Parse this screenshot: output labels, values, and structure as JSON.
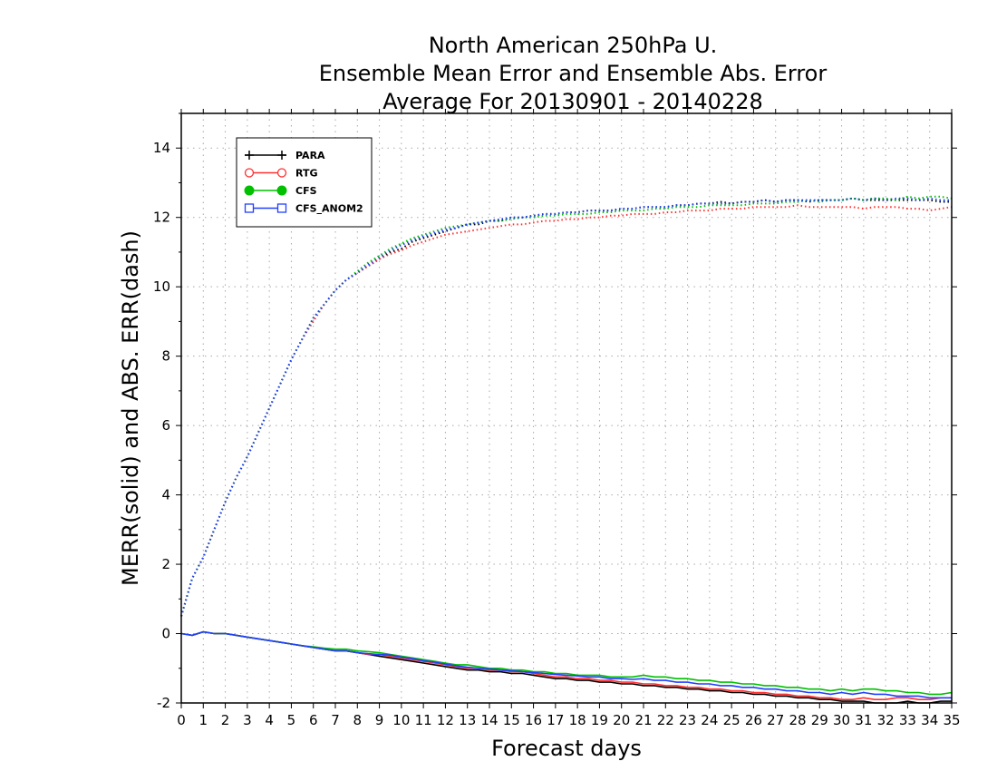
{
  "chart_data": {
    "type": "line",
    "title": [
      "North American 250hPa U.",
      "Ensemble Mean Error and Ensemble Abs. Error",
      "Average For 20130901 - 20140228"
    ],
    "xlabel": "Forecast days",
    "ylabel": "MERR(solid) and ABS. ERR(dash)",
    "xlim": [
      0,
      35
    ],
    "ylim": [
      -2,
      15
    ],
    "xticks": [
      0,
      1,
      2,
      3,
      4,
      5,
      6,
      7,
      8,
      9,
      10,
      11,
      12,
      13,
      14,
      15,
      16,
      17,
      18,
      19,
      20,
      21,
      22,
      23,
      24,
      25,
      26,
      27,
      28,
      29,
      30,
      31,
      32,
      33,
      34,
      35
    ],
    "yticks": [
      -2,
      0,
      2,
      4,
      6,
      8,
      10,
      12,
      14
    ],
    "grid": true,
    "legend_position": "top-left",
    "x": [
      0,
      0.5,
      1,
      1.5,
      2,
      2.5,
      3,
      3.5,
      4,
      4.5,
      5,
      5.5,
      6,
      6.5,
      7,
      7.5,
      8,
      8.5,
      9,
      9.5,
      10,
      10.5,
      11,
      11.5,
      12,
      12.5,
      13,
      13.5,
      14,
      14.5,
      15,
      15.5,
      16,
      16.5,
      17,
      17.5,
      18,
      18.5,
      19,
      19.5,
      20,
      20.5,
      21,
      21.5,
      22,
      22.5,
      23,
      23.5,
      24,
      24.5,
      25,
      25.5,
      26,
      26.5,
      27,
      27.5,
      28,
      28.5,
      29,
      29.5,
      30,
      30.5,
      31,
      31.5,
      32,
      32.5,
      33,
      33.5,
      34,
      34.5,
      35
    ],
    "series": [
      {
        "name": "PARA",
        "color": "#000000",
        "marker": "plus",
        "merr": [
          0,
          -0.05,
          0.05,
          0,
          0,
          -0.05,
          -0.1,
          -0.15,
          -0.2,
          -0.25,
          -0.3,
          -0.35,
          -0.4,
          -0.45,
          -0.5,
          -0.5,
          -0.55,
          -0.6,
          -0.65,
          -0.7,
          -0.75,
          -0.8,
          -0.85,
          -0.9,
          -0.95,
          -1,
          -1.05,
          -1.05,
          -1.1,
          -1.1,
          -1.15,
          -1.15,
          -1.2,
          -1.25,
          -1.3,
          -1.3,
          -1.35,
          -1.35,
          -1.4,
          -1.4,
          -1.45,
          -1.45,
          -1.5,
          -1.5,
          -1.55,
          -1.55,
          -1.6,
          -1.6,
          -1.65,
          -1.65,
          -1.7,
          -1.7,
          -1.75,
          -1.75,
          -1.8,
          -1.8,
          -1.85,
          -1.85,
          -1.9,
          -1.9,
          -1.95,
          -1.95,
          -1.95,
          -2,
          -2,
          -2,
          -1.95,
          -2,
          -2,
          -1.95,
          -1.95
        ],
        "abs_err": [
          0.5,
          1.6,
          2.2,
          3,
          3.8,
          4.5,
          5.1,
          5.8,
          6.5,
          7.2,
          7.9,
          8.5,
          9.1,
          9.5,
          9.9,
          10.2,
          10.4,
          10.6,
          10.8,
          11,
          11.1,
          11.3,
          11.4,
          11.5,
          11.6,
          11.7,
          11.8,
          11.8,
          11.9,
          11.9,
          12,
          12,
          12.05,
          12.1,
          12.1,
          12.15,
          12.15,
          12.2,
          12.2,
          12.2,
          12.25,
          12.25,
          12.3,
          12.3,
          12.3,
          12.35,
          12.35,
          12.4,
          12.4,
          12.45,
          12.4,
          12.45,
          12.45,
          12.5,
          12.45,
          12.5,
          12.5,
          12.45,
          12.5,
          12.5,
          12.5,
          12.55,
          12.5,
          12.5,
          12.5,
          12.5,
          12.5,
          12.5,
          12.5,
          12.45,
          12.45
        ]
      },
      {
        "name": "RTG",
        "color": "#ff3030",
        "marker": "open-circle",
        "merr": [
          0,
          -0.05,
          0.05,
          0,
          0,
          -0.05,
          -0.1,
          -0.15,
          -0.2,
          -0.25,
          -0.3,
          -0.35,
          -0.4,
          -0.45,
          -0.5,
          -0.5,
          -0.55,
          -0.6,
          -0.6,
          -0.65,
          -0.7,
          -0.75,
          -0.8,
          -0.85,
          -0.9,
          -0.95,
          -1,
          -1,
          -1.05,
          -1.05,
          -1.1,
          -1.1,
          -1.15,
          -1.2,
          -1.25,
          -1.25,
          -1.3,
          -1.3,
          -1.35,
          -1.35,
          -1.4,
          -1.4,
          -1.45,
          -1.45,
          -1.5,
          -1.5,
          -1.55,
          -1.55,
          -1.6,
          -1.6,
          -1.65,
          -1.65,
          -1.7,
          -1.7,
          -1.75,
          -1.75,
          -1.8,
          -1.8,
          -1.85,
          -1.85,
          -1.9,
          -1.9,
          -1.85,
          -1.9,
          -1.9,
          -1.85,
          -1.85,
          -1.9,
          -1.9,
          -1.85,
          -1.85
        ],
        "abs_err": [
          0.5,
          1.6,
          2.2,
          3,
          3.8,
          4.5,
          5.1,
          5.8,
          6.5,
          7.2,
          7.9,
          8.5,
          9,
          9.5,
          9.9,
          10.2,
          10.4,
          10.6,
          10.8,
          10.95,
          11.05,
          11.2,
          11.3,
          11.4,
          11.5,
          11.55,
          11.6,
          11.65,
          11.7,
          11.75,
          11.8,
          11.8,
          11.85,
          11.9,
          11.9,
          11.95,
          11.95,
          12,
          12,
          12.05,
          12.05,
          12.1,
          12.1,
          12.1,
          12.15,
          12.15,
          12.2,
          12.2,
          12.2,
          12.25,
          12.25,
          12.25,
          12.3,
          12.3,
          12.3,
          12.3,
          12.35,
          12.3,
          12.3,
          12.3,
          12.3,
          12.3,
          12.25,
          12.3,
          12.3,
          12.3,
          12.25,
          12.25,
          12.2,
          12.25,
          12.3
        ]
      },
      {
        "name": "CFS",
        "color": "#00c000",
        "marker": "filled-circle",
        "merr": [
          0,
          -0.05,
          0.05,
          0,
          0,
          -0.05,
          -0.1,
          -0.15,
          -0.2,
          -0.25,
          -0.3,
          -0.35,
          -0.38,
          -0.42,
          -0.45,
          -0.45,
          -0.5,
          -0.52,
          -0.55,
          -0.6,
          -0.65,
          -0.7,
          -0.75,
          -0.8,
          -0.85,
          -0.9,
          -0.9,
          -0.95,
          -1,
          -1,
          -1.05,
          -1.05,
          -1.1,
          -1.1,
          -1.15,
          -1.15,
          -1.2,
          -1.2,
          -1.2,
          -1.25,
          -1.25,
          -1.25,
          -1.2,
          -1.25,
          -1.25,
          -1.3,
          -1.3,
          -1.35,
          -1.35,
          -1.4,
          -1.4,
          -1.45,
          -1.45,
          -1.5,
          -1.5,
          -1.55,
          -1.55,
          -1.6,
          -1.6,
          -1.65,
          -1.6,
          -1.65,
          -1.6,
          -1.6,
          -1.65,
          -1.65,
          -1.7,
          -1.7,
          -1.75,
          -1.75,
          -1.7
        ],
        "abs_err": [
          0.5,
          1.6,
          2.2,
          3,
          3.8,
          4.5,
          5.1,
          5.8,
          6.5,
          7.2,
          7.9,
          8.5,
          9.1,
          9.5,
          9.9,
          10.2,
          10.45,
          10.7,
          10.9,
          11.1,
          11.25,
          11.4,
          11.5,
          11.6,
          11.7,
          11.75,
          11.8,
          11.85,
          11.9,
          11.9,
          11.95,
          12,
          12,
          12.05,
          12.05,
          12.1,
          12.1,
          12.1,
          12.15,
          12.15,
          12.2,
          12.2,
          12.2,
          12.25,
          12.25,
          12.3,
          12.3,
          12.3,
          12.35,
          12.35,
          12.35,
          12.35,
          12.4,
          12.4,
          12.4,
          12.45,
          12.45,
          12.5,
          12.45,
          12.5,
          12.5,
          12.55,
          12.5,
          12.55,
          12.55,
          12.5,
          12.6,
          12.55,
          12.6,
          12.6,
          12.55
        ]
      },
      {
        "name": "CFS_ANOM2",
        "color": "#2040ff",
        "marker": "open-square",
        "merr": [
          0,
          -0.05,
          0.05,
          0,
          0,
          -0.05,
          -0.1,
          -0.15,
          -0.2,
          -0.25,
          -0.3,
          -0.35,
          -0.4,
          -0.45,
          -0.5,
          -0.5,
          -0.55,
          -0.58,
          -0.6,
          -0.62,
          -0.68,
          -0.72,
          -0.78,
          -0.82,
          -0.88,
          -0.93,
          -0.97,
          -1,
          -1.02,
          -1.05,
          -1.07,
          -1.1,
          -1.12,
          -1.15,
          -1.18,
          -1.2,
          -1.22,
          -1.25,
          -1.25,
          -1.3,
          -1.3,
          -1.32,
          -1.3,
          -1.35,
          -1.35,
          -1.4,
          -1.4,
          -1.45,
          -1.45,
          -1.5,
          -1.5,
          -1.55,
          -1.55,
          -1.6,
          -1.6,
          -1.65,
          -1.65,
          -1.7,
          -1.7,
          -1.75,
          -1.7,
          -1.75,
          -1.7,
          -1.75,
          -1.75,
          -1.8,
          -1.8,
          -1.8,
          -1.85,
          -1.85,
          -1.85
        ],
        "abs_err": [
          0.5,
          1.6,
          2.2,
          3,
          3.8,
          4.5,
          5.1,
          5.8,
          6.5,
          7.2,
          7.9,
          8.5,
          9.1,
          9.5,
          9.9,
          10.2,
          10.4,
          10.65,
          10.85,
          11.05,
          11.2,
          11.35,
          11.45,
          11.55,
          11.65,
          11.7,
          11.8,
          11.85,
          11.9,
          11.95,
          12,
          12,
          12.05,
          12.1,
          12.1,
          12.15,
          12.15,
          12.2,
          12.2,
          12.2,
          12.25,
          12.25,
          12.3,
          12.3,
          12.3,
          12.35,
          12.35,
          12.4,
          12.4,
          12.4,
          12.4,
          12.45,
          12.45,
          12.5,
          12.45,
          12.5,
          12.5,
          12.5,
          12.5,
          12.5,
          12.5,
          12.55,
          12.5,
          12.55,
          12.5,
          12.55,
          12.55,
          12.5,
          12.55,
          12.5,
          12.5
        ]
      }
    ]
  }
}
